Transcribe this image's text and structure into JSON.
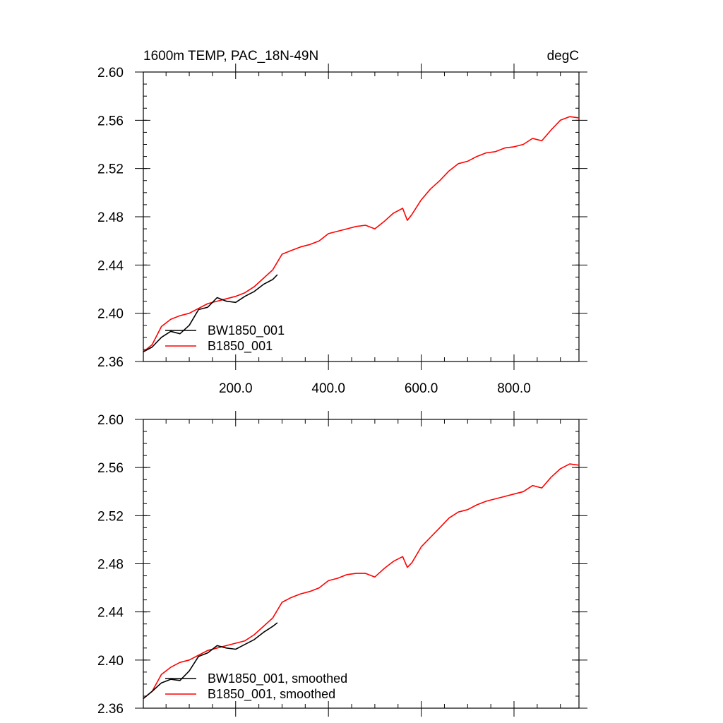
{
  "chart_data": [
    {
      "type": "line",
      "title": "1600m TEMP, PAC_18N-49N",
      "units": "degC",
      "xlim": [
        1,
        940
      ],
      "ylim": [
        2.36,
        2.6
      ],
      "x_ticks": [
        200,
        400,
        600,
        800
      ],
      "x_tick_labels": [
        "200.0",
        "400.0",
        "600.0",
        "800.0"
      ],
      "y_ticks": [
        2.36,
        2.4,
        2.44,
        2.48,
        2.52,
        2.56,
        2.6
      ],
      "y_tick_labels": [
        "2.36",
        "2.40",
        "2.44",
        "2.48",
        "2.52",
        "2.56",
        "2.60"
      ],
      "grid": false,
      "legend_position": "bottom-left",
      "series": [
        {
          "name": "BW1850_001",
          "color": "#000000",
          "x": [
            1,
            20,
            40,
            60,
            80,
            100,
            120,
            140,
            160,
            180,
            200,
            220,
            240,
            260,
            280,
            290
          ],
          "y": [
            2.368,
            2.372,
            2.38,
            2.385,
            2.383,
            2.39,
            2.403,
            2.405,
            2.413,
            2.41,
            2.409,
            2.414,
            2.418,
            2.424,
            2.428,
            2.432
          ]
        },
        {
          "name": "B1850_001",
          "color": "#ff0000",
          "x": [
            1,
            20,
            40,
            60,
            80,
            100,
            120,
            140,
            160,
            180,
            200,
            220,
            240,
            260,
            280,
            300,
            320,
            340,
            360,
            380,
            400,
            420,
            440,
            460,
            480,
            500,
            520,
            540,
            560,
            570,
            580,
            600,
            620,
            640,
            660,
            680,
            700,
            720,
            740,
            760,
            780,
            800,
            820,
            840,
            860,
            880,
            900,
            920,
            940
          ],
          "y": [
            2.368,
            2.374,
            2.389,
            2.395,
            2.398,
            2.4,
            2.404,
            2.408,
            2.41,
            2.412,
            2.414,
            2.417,
            2.422,
            2.429,
            2.436,
            2.449,
            2.452,
            2.455,
            2.457,
            2.46,
            2.466,
            2.468,
            2.47,
            2.472,
            2.473,
            2.47,
            2.476,
            2.483,
            2.487,
            2.477,
            2.482,
            2.494,
            2.503,
            2.51,
            2.518,
            2.524,
            2.526,
            2.53,
            2.533,
            2.534,
            2.537,
            2.538,
            2.54,
            2.545,
            2.543,
            2.552,
            2.56,
            2.563,
            2.562
          ]
        }
      ]
    },
    {
      "type": "line",
      "ylim": [
        2.36,
        2.6
      ],
      "xlim": [
        1,
        940
      ],
      "x_ticks": [
        200,
        400,
        600,
        800
      ],
      "y_ticks": [
        2.36,
        2.4,
        2.44,
        2.48,
        2.52,
        2.56,
        2.6
      ],
      "y_tick_labels": [
        "2.36",
        "2.40",
        "2.44",
        "2.48",
        "2.52",
        "2.56",
        "2.60"
      ],
      "grid": false,
      "legend_position": "bottom-left",
      "series": [
        {
          "name": "BW1850_001, smoothed",
          "color": "#000000",
          "x": [
            1,
            20,
            40,
            60,
            80,
            100,
            120,
            140,
            160,
            180,
            200,
            220,
            240,
            260,
            280,
            290
          ],
          "y": [
            2.368,
            2.374,
            2.381,
            2.384,
            2.383,
            2.391,
            2.403,
            2.406,
            2.412,
            2.41,
            2.409,
            2.413,
            2.417,
            2.423,
            2.428,
            2.431
          ]
        },
        {
          "name": "B1850_001, smoothed",
          "color": "#ff0000",
          "x": [
            1,
            20,
            40,
            60,
            80,
            100,
            120,
            140,
            160,
            180,
            200,
            220,
            240,
            260,
            280,
            300,
            320,
            340,
            360,
            380,
            400,
            420,
            440,
            460,
            480,
            500,
            520,
            540,
            560,
            570,
            580,
            600,
            620,
            640,
            660,
            680,
            700,
            720,
            740,
            760,
            780,
            800,
            820,
            840,
            860,
            880,
            900,
            920,
            940
          ],
          "y": [
            2.368,
            2.374,
            2.388,
            2.394,
            2.398,
            2.4,
            2.404,
            2.408,
            2.41,
            2.412,
            2.414,
            2.416,
            2.421,
            2.428,
            2.435,
            2.448,
            2.452,
            2.455,
            2.457,
            2.46,
            2.466,
            2.468,
            2.471,
            2.472,
            2.472,
            2.469,
            2.476,
            2.482,
            2.486,
            2.477,
            2.481,
            2.494,
            2.502,
            2.51,
            2.518,
            2.523,
            2.525,
            2.529,
            2.532,
            2.534,
            2.536,
            2.538,
            2.54,
            2.545,
            2.543,
            2.552,
            2.559,
            2.563,
            2.562
          ]
        }
      ]
    }
  ]
}
